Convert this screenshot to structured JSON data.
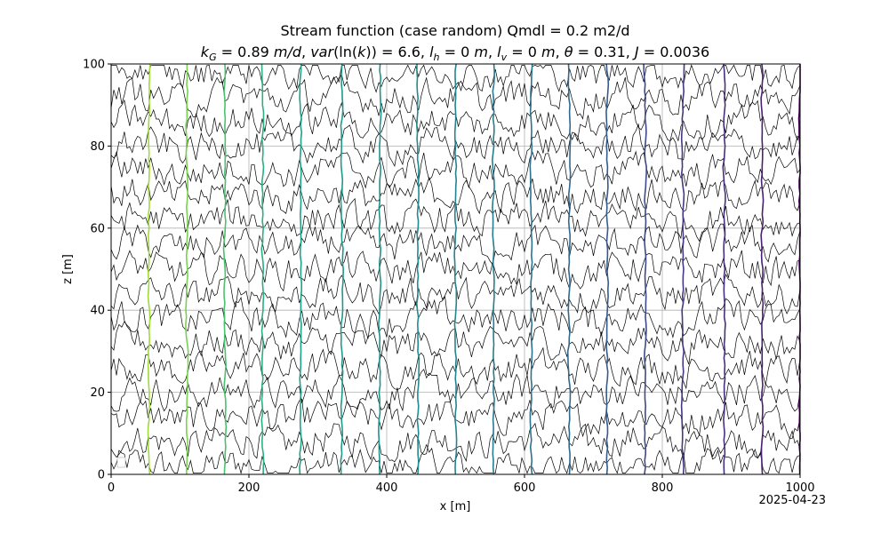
{
  "chart_data": {
    "type": "line",
    "title": "Stream function (case random) Qmdl = 0.2 m2/d",
    "subtitle": "k_G = 0.89 m/d, var(ln(k)) = 6.6, l_h = 0 m, l_v = 0 m, θ = 0.31, J = 0.0036",
    "subtitle_parts": {
      "kG": "0.89",
      "kG_unit": "m/d",
      "var_lnk": "6.6",
      "lh": "0",
      "lh_unit": "m",
      "lv": "0",
      "lv_unit": "m",
      "theta": "0.31",
      "J": "0.0036"
    },
    "xlabel": "x [m]",
    "ylabel": "z [m]",
    "xlim": [
      0,
      1000
    ],
    "ylim": [
      0,
      100
    ],
    "x_ticks": [
      0,
      200,
      400,
      600,
      800,
      1000
    ],
    "y_ticks": [
      0,
      20,
      40,
      60,
      80,
      100
    ],
    "grid": true,
    "legend": "bottom-left (empty)",
    "date_stamp": "2025-04-23",
    "stream_function_contours": {
      "color": "#000000",
      "levels_z": [
        2,
        8,
        14,
        20,
        26,
        32,
        38,
        44,
        50,
        56,
        62,
        68,
        74,
        80,
        86,
        92,
        98
      ]
    },
    "head_contours": {
      "x_positions": [
        55,
        110,
        165,
        220,
        275,
        335,
        390,
        445,
        500,
        555,
        610,
        665,
        720,
        775,
        830,
        890,
        945,
        1000
      ],
      "colors": [
        "#a0da39",
        "#7ad151",
        "#4ac16d",
        "#2ab07f",
        "#1fa187",
        "#1f9a8a",
        "#20928c",
        "#228b8d",
        "#25838e",
        "#287c8e",
        "#2c728e",
        "#31688e",
        "#375a8c",
        "#3e4989",
        "#443983",
        "#46307e",
        "#482173",
        "#440154"
      ]
    }
  }
}
